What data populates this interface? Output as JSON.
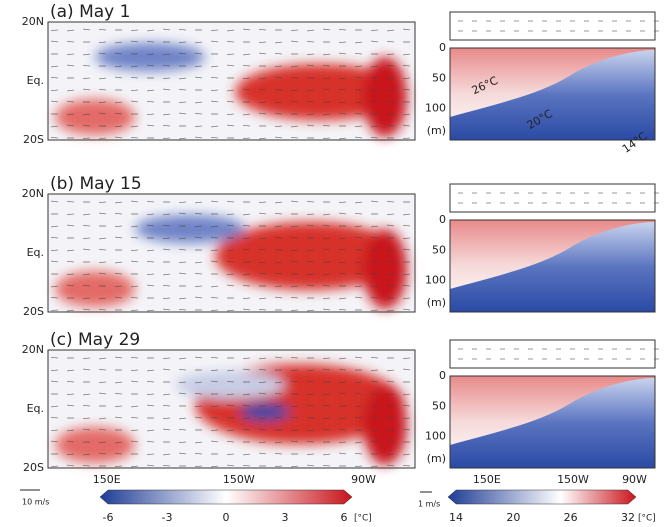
{
  "panels": [
    {
      "label": "(a) May 1"
    },
    {
      "label": "(b) May 15"
    },
    {
      "label": "(c) May 29"
    }
  ],
  "map_axes": {
    "lat_labels": [
      "20N",
      "Eq.",
      "20S"
    ],
    "lon_labels": [
      "150E",
      "150W",
      "90W"
    ]
  },
  "depth_axes": {
    "depth_labels": [
      "0",
      "50",
      "100",
      "(m)"
    ],
    "lon_labels": [
      "150E",
      "150W",
      "90W"
    ]
  },
  "isotherm_labels": [
    "26°C",
    "20°C",
    "14°C"
  ],
  "anomaly_colorbar": {
    "ticks": [
      "-6",
      "-3",
      "0",
      "3",
      "6"
    ],
    "unit": "[°C]"
  },
  "temperature_colorbar": {
    "ticks": [
      "14",
      "20",
      "26",
      "32"
    ],
    "unit": "[°C]"
  },
  "reference_vectors": [
    "10 m/s",
    "1 m/s"
  ]
}
